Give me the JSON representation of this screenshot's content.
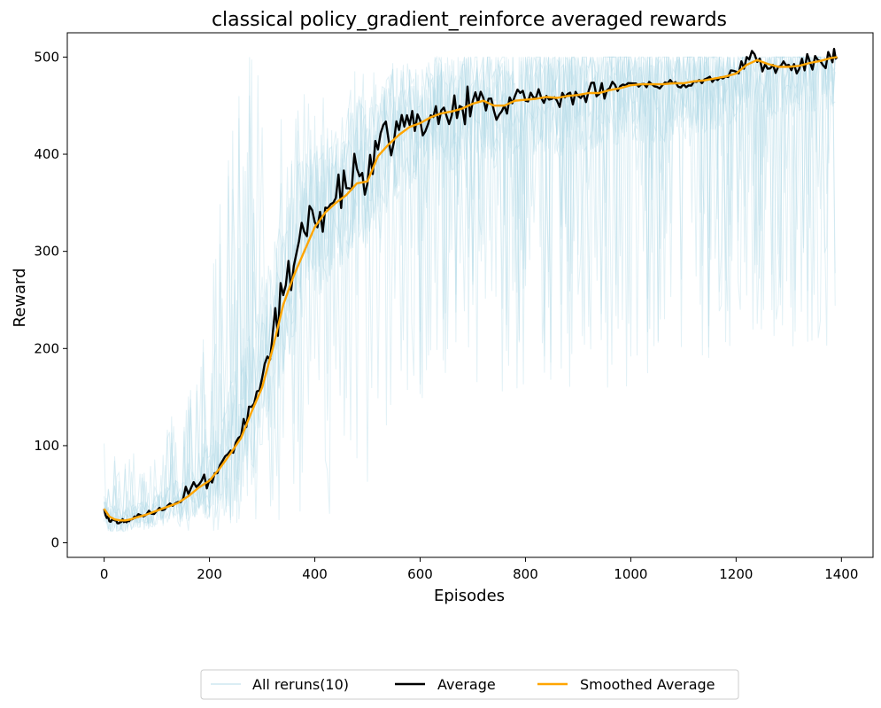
{
  "chart_data": {
    "type": "line",
    "title": "classical policy_gradient_reinforce averaged rewards",
    "xlabel": "Episodes",
    "ylabel": "Reward",
    "xlim": [
      -70,
      1460
    ],
    "ylim": [
      -15,
      525
    ],
    "xticks": [
      0,
      200,
      400,
      600,
      800,
      1000,
      1200,
      1400
    ],
    "yticks": [
      0,
      100,
      200,
      300,
      400,
      500
    ],
    "grid": false,
    "legend_placement": "bottom-center-below",
    "colors": {
      "reruns": "#add8e6",
      "average": "#000000",
      "smoothed": "#ffa500"
    },
    "series": [
      {
        "name": "All reruns(10)",
        "style": "thin translucent band",
        "envelope_x": [
          0,
          50,
          100,
          150,
          200,
          250,
          300,
          350,
          400,
          420,
          450,
          500,
          550,
          600,
          650,
          700,
          750,
          800,
          900,
          1000,
          1100,
          1200,
          1300,
          1390
        ],
        "envelope_low": [
          12,
          12,
          12,
          12,
          12,
          12,
          12,
          12,
          12,
          20,
          40,
          60,
          100,
          140,
          160,
          150,
          150,
          140,
          160,
          150,
          170,
          200,
          200,
          200
        ],
        "envelope_high": [
          110,
          90,
          110,
          150,
          250,
          500,
          500,
          500,
          500,
          500,
          500,
          500,
          500,
          500,
          500,
          500,
          500,
          500,
          500,
          500,
          500,
          500,
          500,
          500
        ]
      },
      {
        "name": "Average",
        "x": [
          0,
          10,
          20,
          30,
          40,
          50,
          60,
          80,
          100,
          120,
          140,
          160,
          180,
          200,
          220,
          240,
          260,
          280,
          300,
          320,
          340,
          360,
          380,
          400,
          420,
          440,
          460,
          480,
          500,
          520,
          540,
          560,
          580,
          600,
          620,
          640,
          660,
          680,
          700,
          720,
          740,
          760,
          780,
          800,
          820,
          840,
          860,
          880,
          900,
          920,
          940,
          960,
          980,
          1000,
          1020,
          1040,
          1060,
          1080,
          1100,
          1120,
          1140,
          1160,
          1180,
          1200,
          1220,
          1240,
          1260,
          1280,
          1300,
          1320,
          1340,
          1360,
          1380,
          1392
        ],
        "values": [
          35,
          22,
          23,
          21,
          22,
          24,
          26,
          29,
          33,
          38,
          42,
          50,
          60,
          65,
          80,
          95,
          110,
          140,
          170,
          215,
          255,
          285,
          320,
          330,
          345,
          355,
          365,
          385,
          370,
          405,
          415,
          425,
          430,
          435,
          440,
          445,
          440,
          448,
          455,
          458,
          445,
          450,
          460,
          455,
          458,
          460,
          455,
          462,
          460,
          465,
          462,
          468,
          470,
          473,
          472,
          472,
          471,
          473,
          472,
          475,
          477,
          478,
          480,
          485,
          500,
          495,
          488,
          490,
          492,
          488,
          495,
          496,
          499,
          500
        ]
      },
      {
        "name": "Smoothed Average",
        "x": [
          0,
          10,
          20,
          30,
          40,
          50,
          60,
          80,
          100,
          120,
          140,
          160,
          180,
          200,
          220,
          240,
          260,
          280,
          300,
          320,
          340,
          360,
          380,
          400,
          420,
          440,
          460,
          480,
          500,
          520,
          540,
          560,
          580,
          600,
          620,
          640,
          660,
          680,
          700,
          720,
          740,
          760,
          780,
          800,
          820,
          840,
          860,
          880,
          900,
          920,
          940,
          960,
          980,
          1000,
          1020,
          1040,
          1060,
          1080,
          1100,
          1120,
          1140,
          1160,
          1180,
          1200,
          1220,
          1240,
          1260,
          1280,
          1300,
          1320,
          1340,
          1360,
          1380,
          1392
        ],
        "values": [
          35,
          27,
          24,
          23,
          23,
          24,
          26,
          29,
          33,
          37,
          41,
          48,
          57,
          64,
          77,
          92,
          108,
          135,
          160,
          200,
          245,
          275,
          300,
          325,
          340,
          350,
          358,
          370,
          372,
          398,
          410,
          420,
          428,
          432,
          438,
          442,
          444,
          447,
          452,
          455,
          450,
          450,
          455,
          456,
          457,
          459,
          458,
          460,
          461,
          463,
          463,
          466,
          468,
          471,
          472,
          472,
          472,
          473,
          473,
          475,
          476,
          478,
          480,
          483,
          492,
          497,
          493,
          490,
          490,
          491,
          494,
          496,
          499,
          500
        ]
      }
    ]
  }
}
